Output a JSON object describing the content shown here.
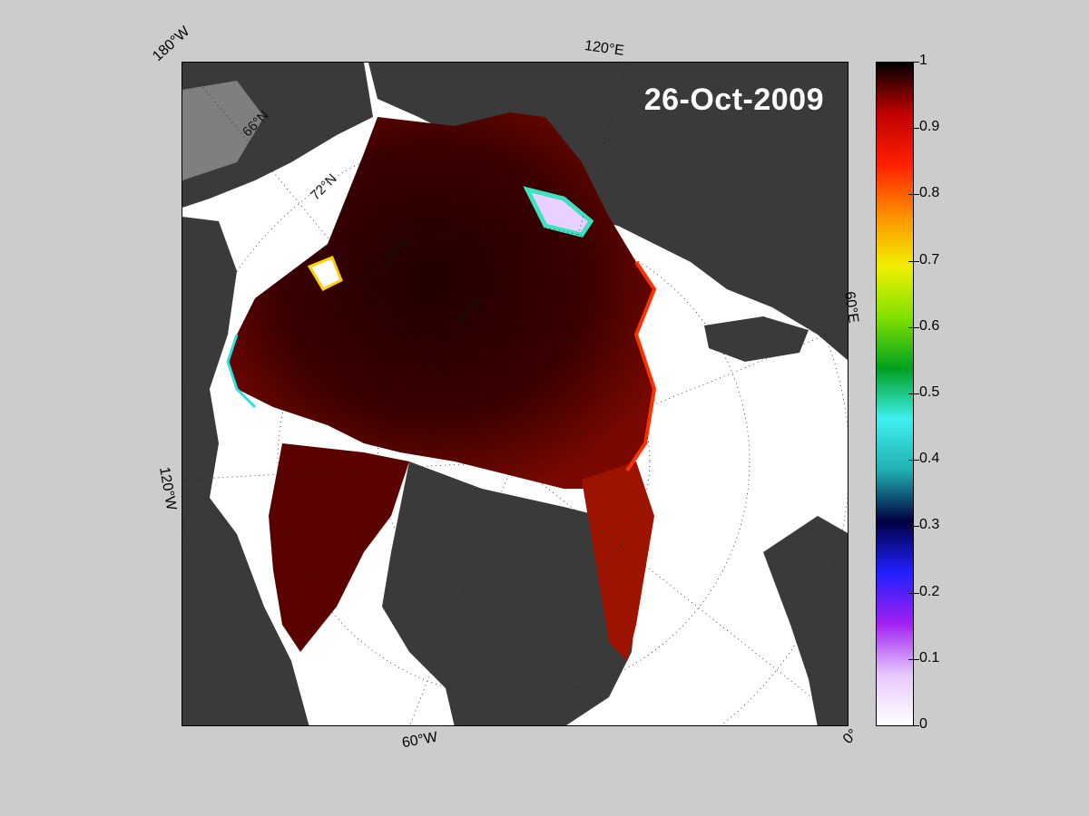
{
  "title": "26-Oct-2009",
  "map": {
    "projection": "polar stereographic, north pole",
    "longitude_labels": [
      "180°W",
      "120°E",
      "60°E",
      "0°",
      "60°W",
      "120°W"
    ],
    "latitude_labels": [
      "66°N",
      "72°N",
      "78°N",
      "84°N"
    ],
    "colors": {
      "background": "#cccccc",
      "land": "#3a3a3a",
      "land_masked": "#7f7f7f",
      "open_water": "#ffffff",
      "ice_high": "#2a0000",
      "ice_mid": "#8a0a00"
    }
  },
  "colorbar": {
    "min": 0,
    "max": 1,
    "tick_labels": [
      "1",
      "0.9",
      "0.8",
      "0.7",
      "0.6",
      "0.5",
      "0.4",
      "0.3",
      "0.2",
      "0.1",
      "0"
    ],
    "colormap": [
      "#ffffff",
      "#e6c8ff",
      "#a020f0",
      "#2020ff",
      "#000040",
      "#20b0b0",
      "#40f0f0",
      "#00a020",
      "#80e000",
      "#f0f000",
      "#ff9000",
      "#ff2000",
      "#c00000",
      "#000000"
    ]
  }
}
